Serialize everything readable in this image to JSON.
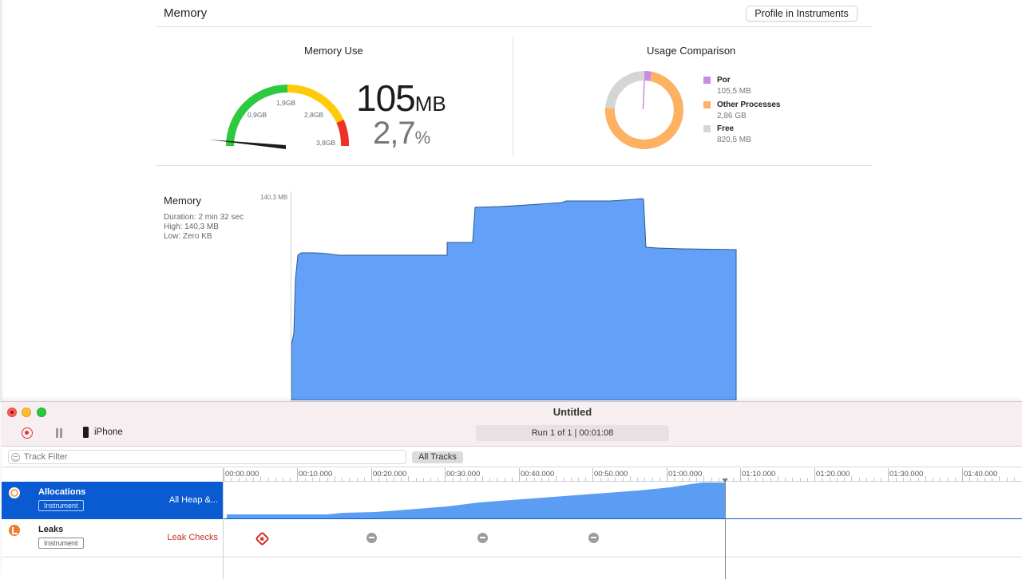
{
  "report": {
    "title": "Memory",
    "profile_button": "Profile in Instruments",
    "memory_use": {
      "title": "Memory Use",
      "gauge_labels": [
        "0,9GB",
        "1,9GB",
        "2,8GB",
        "3,8GB"
      ],
      "value_number": "105",
      "value_unit": "MB",
      "percent_number": "2,7",
      "percent_unit": "%",
      "colors": {
        "green": "#2dc93f",
        "yellow": "#fdcb0a",
        "red": "#f1302a",
        "needle": "#1a1a1a"
      }
    },
    "usage_comparison": {
      "title": "Usage Comparison",
      "legend": [
        {
          "name": "Por",
          "value": "105,5 MB",
          "color": "#c98be6"
        },
        {
          "name": "Other Processes",
          "value": "2,86 GB",
          "color": "#fdb161"
        },
        {
          "name": "Free",
          "value": "820,5 MB",
          "color": "#d5d5d5"
        }
      ]
    },
    "memory_graph": {
      "title": "Memory",
      "stats": [
        "Duration: 2 min 32 sec",
        "High: 140,3 MB",
        "Low: Zero KB"
      ],
      "y_max_label": "140,3 MB",
      "fill_color": "#62a1f7",
      "stroke_color": "#2a5894"
    }
  },
  "instruments": {
    "window_title": "Untitled",
    "device": "iPhone",
    "run_info": "Run 1 of 1  |  00:01:08",
    "track_filter_placeholder": "Track Filter",
    "all_tracks_button": "All Tracks",
    "ruler_labels": [
      "00:00.000",
      "00:10.000",
      "00:20.000",
      "00:30.000",
      "00:40.000",
      "00:50.000",
      "01:00.000",
      "01:10.000",
      "01:20.000",
      "01:30.000",
      "01:40.000"
    ],
    "tracks": [
      {
        "name": "Allocations",
        "badge": "Instrument",
        "detail": "All Heap &...",
        "icon": "allocations-icon"
      },
      {
        "name": "Leaks",
        "badge": "Instrument",
        "detail": "Leak Checks",
        "icon": "leaks-icon"
      }
    ],
    "leak_checks": [
      {
        "time": "00:05",
        "status": "leak"
      },
      {
        "time": "00:20",
        "status": "no-leak"
      },
      {
        "time": "00:35",
        "status": "no-leak"
      },
      {
        "time": "00:50",
        "status": "no-leak"
      }
    ],
    "colors": {
      "selection": "#0a5ad1",
      "graph_fill": "#5c9df4",
      "leak_red": "#d62a2a"
    }
  }
}
